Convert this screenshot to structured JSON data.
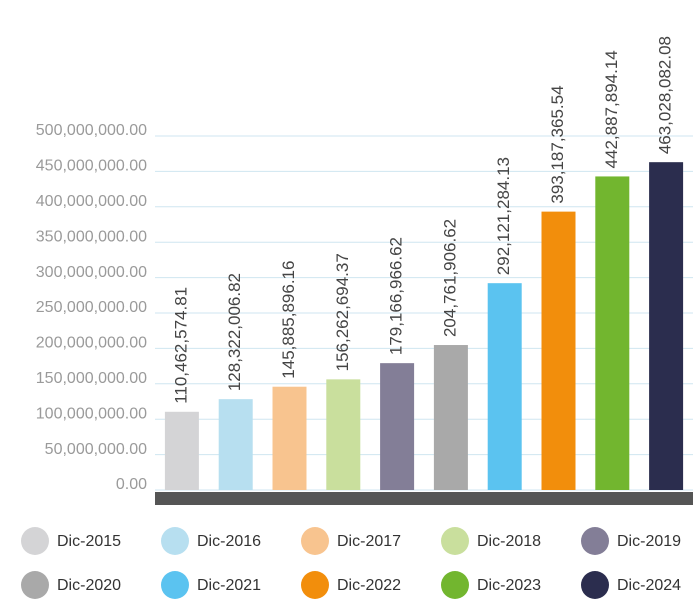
{
  "chart_data": {
    "type": "bar",
    "categories": [
      "Dic-2015",
      "Dic-2016",
      "Dic-2017",
      "Dic-2018",
      "Dic-2019",
      "Dic-2020",
      "Dic-2021",
      "Dic-2022",
      "Dic-2023",
      "Dic-2024"
    ],
    "values": [
      110462574.81,
      128322006.82,
      145885896.16,
      156262694.37,
      179166966.62,
      204761906.62,
      292121284.13,
      393187365.54,
      442887894.14,
      463028082.08
    ],
    "value_labels": [
      "110,462,574.81",
      "128,322,006.82",
      "145,885,896.16",
      "156,262,694.37",
      "179,166,966.62",
      "204,761,906.62",
      "292,121,284.13",
      "393,187,365.54",
      "442,887,894.14",
      "463,028,082.08"
    ],
    "colors": [
      "#d4d4d6",
      "#b7dff0",
      "#f8c48f",
      "#c9df9d",
      "#837e97",
      "#a9a9a9",
      "#5bc3f0",
      "#f28e0c",
      "#72b62f",
      "#2b2d4e"
    ],
    "ylim": [
      0,
      500000000
    ],
    "yticks": [
      {
        "value": 0,
        "label": "0.00"
      },
      {
        "value": 50000000,
        "label": "50,000,000.00"
      },
      {
        "value": 100000000,
        "label": "100,000,000.00"
      },
      {
        "value": 150000000,
        "label": "150,000,000.00"
      },
      {
        "value": 200000000,
        "label": "200,000,000.00"
      },
      {
        "value": 250000000,
        "label": "250,000,000.00"
      },
      {
        "value": 300000000,
        "label": "300,000,000.00"
      },
      {
        "value": 350000000,
        "label": "350,000,000.00"
      },
      {
        "value": 400000000,
        "label": "400,000,000.00"
      },
      {
        "value": 450000000,
        "label": "450,000,000.00"
      },
      {
        "value": 500000000,
        "label": "500,000,000.00"
      }
    ],
    "grid": true
  }
}
